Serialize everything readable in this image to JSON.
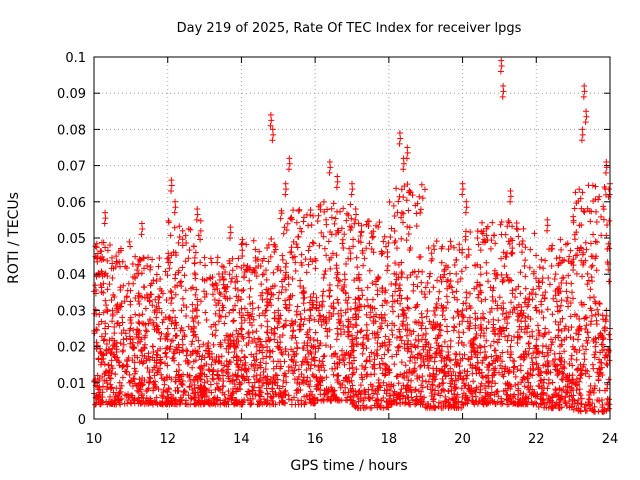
{
  "chart_data": {
    "type": "scatter",
    "title": "Day 219 of 2025, Rate Of TEC Index for receiver lpgs",
    "xlabel": "GPS time / hours",
    "ylabel": "ROTI / TECUs",
    "xlim": [
      10,
      24
    ],
    "ylim": [
      0,
      0.1
    ],
    "x_ticks": [
      "10",
      "12",
      "14",
      "16",
      "18",
      "20",
      "22",
      "24"
    ],
    "y_ticks": [
      "0",
      "0.01",
      "0.02",
      "0.03",
      "0.04",
      "0.05",
      "0.06",
      "0.07",
      "0.08",
      "0.09",
      "0.1"
    ],
    "x_tick_values": [
      10,
      12,
      14,
      16,
      18,
      20,
      22,
      24
    ],
    "y_tick_values": [
      0,
      0.01,
      0.02,
      0.03,
      0.04,
      0.05,
      0.06,
      0.07,
      0.08,
      0.09,
      0.1
    ],
    "grid": true,
    "marker": "+",
    "marker_color": "#ff0000",
    "series": [
      {
        "name": "ROTI",
        "description_note": "dense point cloud; representative sampled values",
        "x": [
          10.1,
          10.2,
          10.3,
          10.4,
          10.5,
          10.6,
          10.7,
          10.8,
          10.9,
          11.0,
          11.1,
          11.2,
          11.3,
          11.4,
          11.5,
          11.6,
          11.7,
          11.8,
          11.9,
          12.0,
          12.1,
          12.2,
          12.3,
          12.4,
          12.5,
          12.6,
          12.7,
          12.8,
          12.9,
          13.0,
          13.1,
          13.2,
          13.3,
          13.4,
          13.5,
          13.6,
          13.7,
          13.8,
          13.9,
          14.0,
          14.1,
          14.2,
          14.3,
          14.4,
          14.5,
          14.6,
          14.7,
          14.8,
          14.9,
          15.0,
          15.1,
          15.2,
          15.3,
          15.4,
          15.5,
          15.6,
          15.7,
          15.8,
          15.9,
          16.0,
          16.1,
          16.2,
          16.3,
          16.4,
          16.5,
          16.6,
          16.7,
          16.8,
          16.9,
          17.0,
          17.1,
          17.2,
          17.3,
          17.4,
          17.5,
          17.6,
          17.7,
          17.8,
          17.9,
          18.0,
          18.1,
          18.2,
          18.3,
          18.4,
          18.5,
          18.6,
          18.7,
          18.8,
          18.9,
          19.0,
          19.1,
          19.2,
          19.3,
          19.4,
          19.5,
          19.6,
          19.7,
          19.8,
          19.9,
          20.0,
          20.1,
          20.2,
          20.3,
          20.4,
          20.5,
          20.6,
          20.7,
          20.8,
          20.9,
          21.0,
          21.1,
          21.2,
          21.3,
          21.4,
          21.5,
          21.6,
          21.7,
          21.8,
          21.9,
          22.0,
          22.1,
          22.2,
          22.3,
          22.4,
          22.5,
          22.6,
          22.7,
          22.8,
          22.9,
          23.0,
          23.1,
          23.2,
          23.3,
          23.4,
          23.5,
          23.6,
          23.7,
          23.8,
          23.9,
          24.0,
          10.3,
          10.6,
          11.3,
          12.1,
          12.2,
          12.8,
          13.7,
          14.8,
          14.85,
          15.2,
          15.3,
          16.4,
          16.6,
          17.0,
          17.1,
          18.3,
          18.4,
          18.5,
          20.0,
          20.1,
          21.05,
          21.1,
          21.3,
          22.3,
          23.25,
          23.3,
          23.35,
          23.9,
          24.0
        ],
        "y": [
          0.012,
          0.018,
          0.025,
          0.015,
          0.03,
          0.02,
          0.01,
          0.022,
          0.016,
          0.028,
          0.014,
          0.024,
          0.019,
          0.026,
          0.013,
          0.02,
          0.031,
          0.017,
          0.011,
          0.025,
          0.035,
          0.028,
          0.015,
          0.022,
          0.019,
          0.012,
          0.027,
          0.033,
          0.014,
          0.01,
          0.021,
          0.018,
          0.026,
          0.03,
          0.012,
          0.016,
          0.023,
          0.02,
          0.015,
          0.028,
          0.017,
          0.024,
          0.032,
          0.018,
          0.022,
          0.013,
          0.027,
          0.036,
          0.025,
          0.03,
          0.038,
          0.042,
          0.033,
          0.026,
          0.021,
          0.029,
          0.035,
          0.024,
          0.018,
          0.02,
          0.03,
          0.034,
          0.028,
          0.037,
          0.032,
          0.025,
          0.03,
          0.04,
          0.027,
          0.023,
          0.029,
          0.033,
          0.021,
          0.026,
          0.031,
          0.018,
          0.024,
          0.028,
          0.015,
          0.022,
          0.034,
          0.04,
          0.037,
          0.03,
          0.026,
          0.02,
          0.017,
          0.023,
          0.028,
          0.025,
          0.019,
          0.014,
          0.021,
          0.026,
          0.016,
          0.02,
          0.012,
          0.018,
          0.024,
          0.03,
          0.035,
          0.028,
          0.022,
          0.017,
          0.026,
          0.02,
          0.015,
          0.012,
          0.019,
          0.025,
          0.032,
          0.028,
          0.02,
          0.016,
          0.024,
          0.03,
          0.027,
          0.021,
          0.015,
          0.02,
          0.012,
          0.01,
          0.016,
          0.022,
          0.018,
          0.026,
          0.014,
          0.009,
          0.012,
          0.008,
          0.011,
          0.015,
          0.018,
          0.024,
          0.03,
          0.02,
          0.014,
          0.022,
          0.03,
          0.025,
          0.057,
          0.045,
          0.054,
          0.066,
          0.06,
          0.058,
          0.053,
          0.084,
          0.08,
          0.065,
          0.072,
          0.071,
          0.067,
          0.065,
          0.058,
          0.079,
          0.072,
          0.075,
          0.065,
          0.06,
          0.099,
          0.092,
          0.063,
          0.055,
          0.08,
          0.092,
          0.085,
          0.071,
          0.065
        ],
        "density_bands": [
          {
            "x0": 10.0,
            "x1": 11.0,
            "lo": 0.004,
            "hi": 0.05
          },
          {
            "x0": 11.0,
            "x1": 12.0,
            "lo": 0.004,
            "hi": 0.045
          },
          {
            "x0": 12.0,
            "x1": 13.0,
            "lo": 0.004,
            "hi": 0.055
          },
          {
            "x0": 13.0,
            "x1": 14.0,
            "lo": 0.004,
            "hi": 0.045
          },
          {
            "x0": 14.0,
            "x1": 15.0,
            "lo": 0.004,
            "hi": 0.05
          },
          {
            "x0": 15.0,
            "x1": 16.0,
            "lo": 0.004,
            "hi": 0.058
          },
          {
            "x0": 16.0,
            "x1": 17.0,
            "lo": 0.005,
            "hi": 0.06
          },
          {
            "x0": 17.0,
            "x1": 18.0,
            "lo": 0.003,
            "hi": 0.055
          },
          {
            "x0": 18.0,
            "x1": 19.0,
            "lo": 0.004,
            "hi": 0.065
          },
          {
            "x0": 19.0,
            "x1": 20.0,
            "lo": 0.003,
            "hi": 0.05
          },
          {
            "x0": 20.0,
            "x1": 21.0,
            "lo": 0.004,
            "hi": 0.055
          },
          {
            "x0": 21.0,
            "x1": 22.0,
            "lo": 0.004,
            "hi": 0.055
          },
          {
            "x0": 22.0,
            "x1": 23.0,
            "lo": 0.003,
            "hi": 0.05
          },
          {
            "x0": 23.0,
            "x1": 24.0,
            "lo": 0.002,
            "hi": 0.065
          }
        ]
      }
    ]
  }
}
